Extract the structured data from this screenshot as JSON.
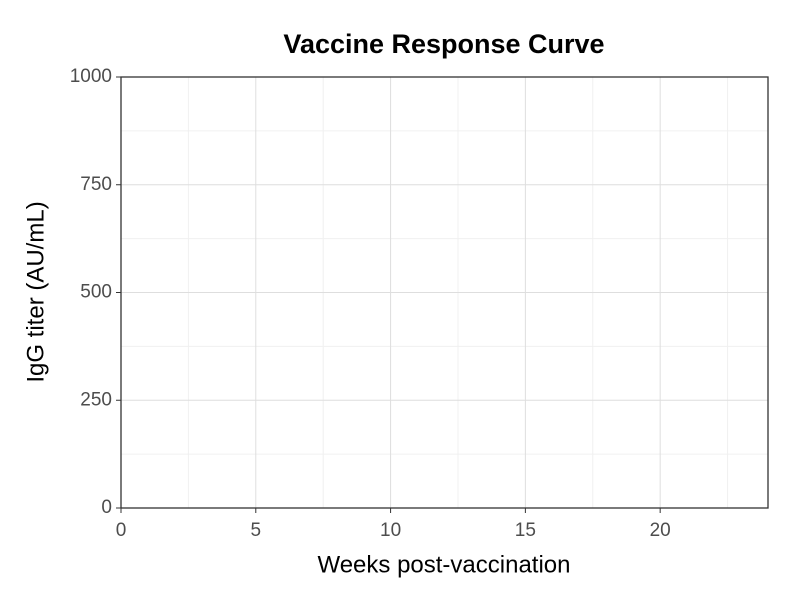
{
  "chart_data": {
    "type": "line",
    "title": "Vaccine Response Curve",
    "x_label": "Weeks post-vaccination",
    "y_label": "IgG titer (AU/mL)",
    "xlim": [
      0,
      24
    ],
    "xticks": [
      0,
      5,
      10,
      15,
      20
    ],
    "ylim": [
      0,
      1000
    ],
    "yticks": [
      0,
      250,
      500,
      750,
      1000
    ],
    "grid": true,
    "minor_grid": true
  }
}
